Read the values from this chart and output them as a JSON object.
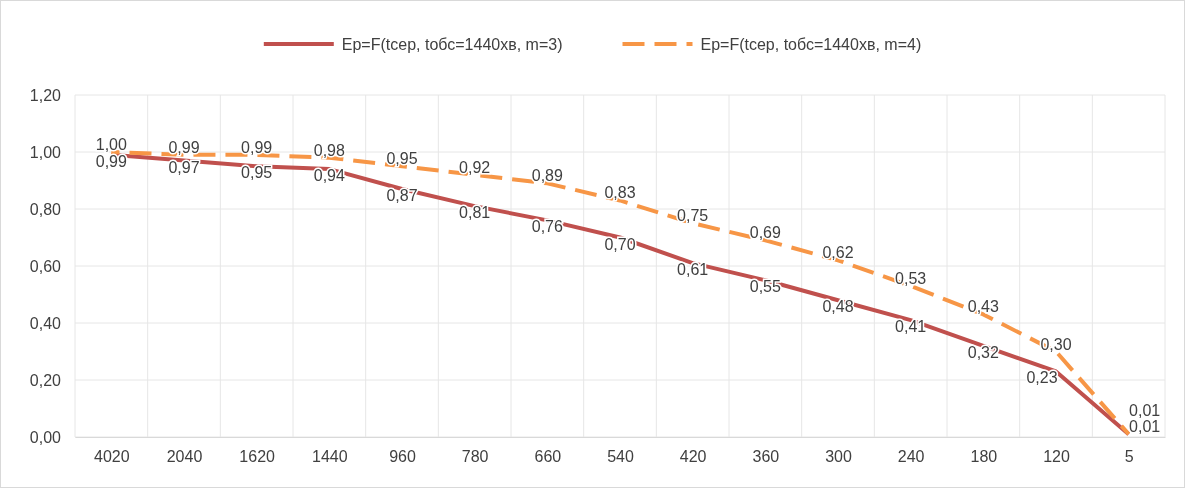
{
  "chart_data": {
    "type": "line",
    "categories": [
      "4020",
      "2040",
      "1620",
      "1440",
      "960",
      "780",
      "660",
      "540",
      "420",
      "360",
      "300",
      "240",
      "180",
      "120",
      "5"
    ],
    "series": [
      {
        "name": "Ep=F(tcep, tобс=1440хв, m=3)",
        "color": "#c0504d",
        "line_style": "solid",
        "values": [
          0.99,
          0.97,
          0.95,
          0.94,
          0.87,
          0.81,
          0.76,
          0.7,
          0.61,
          0.55,
          0.48,
          0.41,
          0.32,
          0.23,
          0.01
        ],
        "value_labels": [
          "0,99",
          "0,97",
          "0,95",
          "0,94",
          "0,87",
          "0,81",
          "0,76",
          "0,70",
          "0,61",
          "0,55",
          "0,48",
          "0,41",
          "0,32",
          "0,23",
          "0,01"
        ]
      },
      {
        "name": "Ep=F(tcep, tобс=1440хв, m=4)",
        "color": "#f79646",
        "line_style": "dashed",
        "values": [
          1.0,
          0.99,
          0.99,
          0.98,
          0.95,
          0.92,
          0.89,
          0.83,
          0.75,
          0.69,
          0.62,
          0.53,
          0.43,
          0.3,
          0.01
        ],
        "value_labels": [
          "1,00",
          "0,99",
          "0,99",
          "0,98",
          "0,95",
          "0,92",
          "0,89",
          "0,83",
          "0,75",
          "0,69",
          "0,62",
          "0,53",
          "0,43",
          "0,30",
          "0,01"
        ]
      }
    ],
    "ylim": [
      0,
      1.2
    ],
    "yticks": [
      {
        "value": 0,
        "label": "0,00"
      },
      {
        "value": 0.2,
        "label": "0,20"
      },
      {
        "value": 0.4,
        "label": "0,40"
      },
      {
        "value": 0.6,
        "label": "0,60"
      },
      {
        "value": 0.8,
        "label": "0,80"
      },
      {
        "value": 1,
        "label": "1,00"
      },
      {
        "value": 1.2,
        "label": "1,20"
      }
    ],
    "grid": true,
    "legend": "top",
    "marker": "none"
  }
}
